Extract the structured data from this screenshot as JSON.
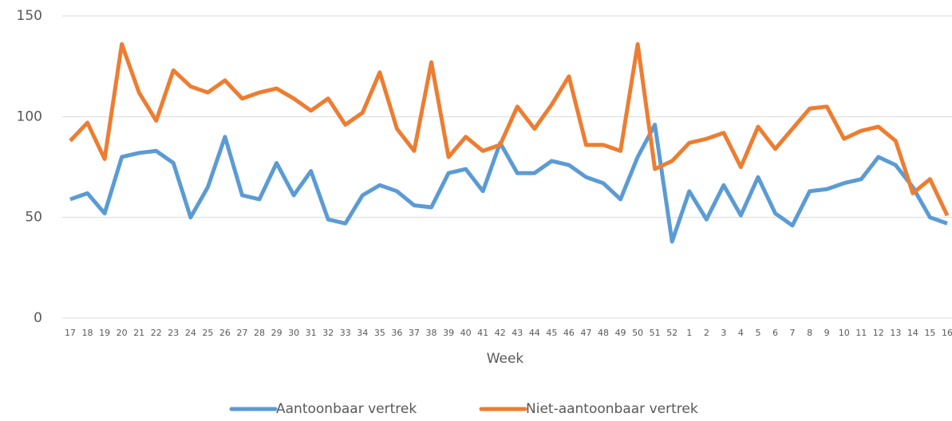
{
  "chart_data": {
    "type": "line",
    "x_label": "Week",
    "categories": [
      "17",
      "18",
      "19",
      "20",
      "21",
      "22",
      "23",
      "24",
      "25",
      "26",
      "27",
      "28",
      "29",
      "30",
      "31",
      "32",
      "33",
      "34",
      "35",
      "36",
      "37",
      "38",
      "39",
      "40",
      "41",
      "42",
      "43",
      "44",
      "45",
      "46",
      "47",
      "48",
      "49",
      "50",
      "51",
      "52",
      "1",
      "2",
      "3",
      "4",
      "5",
      "6",
      "7",
      "8",
      "9",
      "10",
      "11",
      "12",
      "13",
      "14",
      "15",
      "16"
    ],
    "series": [
      {
        "name": "Aantoonbaar vertrek",
        "color": "#5b9bd5",
        "values": [
          59,
          62,
          52,
          80,
          82,
          83,
          77,
          50,
          65,
          90,
          61,
          59,
          77,
          61,
          73,
          49,
          47,
          61,
          66,
          63,
          56,
          55,
          72,
          74,
          63,
          87,
          72,
          72,
          78,
          76,
          70,
          67,
          59,
          80,
          96,
          38,
          63,
          49,
          66,
          51,
          70,
          52,
          46,
          63,
          64,
          67,
          69,
          80,
          76,
          65,
          50,
          47
        ]
      },
      {
        "name": "Niet-aantoonbaar vertrek",
        "color": "#ed7d31",
        "values": [
          88,
          97,
          79,
          136,
          112,
          98,
          123,
          115,
          112,
          118,
          109,
          112,
          114,
          109,
          103,
          109,
          96,
          102,
          122,
          94,
          83,
          127,
          80,
          90,
          83,
          86,
          105,
          94,
          106,
          120,
          86,
          86,
          83,
          136,
          74,
          78,
          87,
          89,
          92,
          75,
          95,
          84,
          94,
          104,
          105,
          89,
          93,
          95,
          88,
          62,
          69,
          51
        ]
      }
    ],
    "ylim": [
      0,
      150
    ],
    "yticks": [
      0,
      50,
      100,
      150
    ],
    "grid": true,
    "legend": "bottom"
  }
}
